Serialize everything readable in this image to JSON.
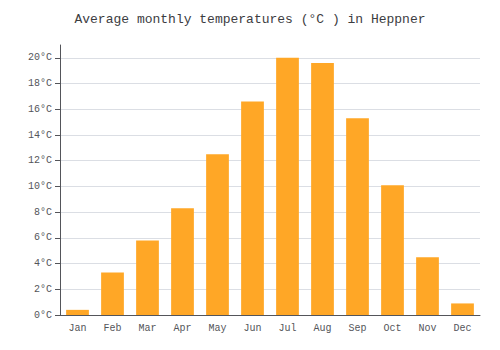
{
  "chart_data": {
    "type": "bar",
    "title": "Average monthly temperatures (°C ) in Heppner",
    "categories": [
      "Jan",
      "Feb",
      "Mar",
      "Apr",
      "May",
      "Jun",
      "Jul",
      "Aug",
      "Sep",
      "Oct",
      "Nov",
      "Dec"
    ],
    "values": [
      0.4,
      3.3,
      5.8,
      8.3,
      12.5,
      16.6,
      20.0,
      19.6,
      15.3,
      10.1,
      4.5,
      0.9
    ],
    "color": "#FFA726",
    "ylim": [
      0,
      21
    ],
    "yticks": [
      {
        "value": 0,
        "label": "0°C"
      },
      {
        "value": 2,
        "label": "2°C"
      },
      {
        "value": 4,
        "label": "4°C"
      },
      {
        "value": 6,
        "label": "6°C"
      },
      {
        "value": 8,
        "label": "8°C"
      },
      {
        "value": 10,
        "label": "10°C"
      },
      {
        "value": 12,
        "label": "12°C"
      },
      {
        "value": 14,
        "label": "14°C"
      },
      {
        "value": 16,
        "label": "16°C"
      },
      {
        "value": 18,
        "label": "18°C"
      },
      {
        "value": 20,
        "label": "20°C"
      }
    ],
    "grid": true
  }
}
